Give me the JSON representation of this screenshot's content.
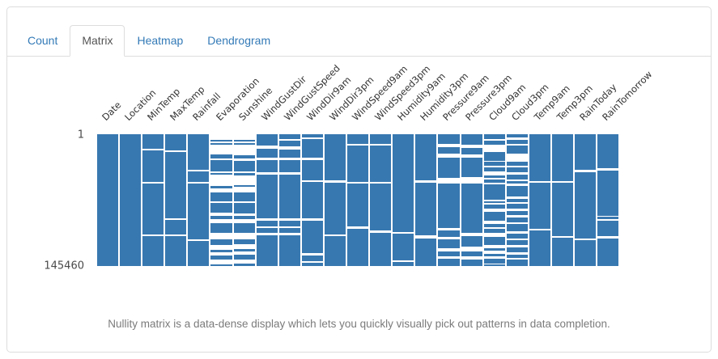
{
  "tabs": {
    "link_color": "#337ab7",
    "active_tab": "Matrix",
    "items": [
      {
        "label": "Count",
        "active": false
      },
      {
        "label": "Matrix",
        "active": true
      },
      {
        "label": "Heatmap",
        "active": false
      },
      {
        "label": "Dendrogram",
        "active": false
      }
    ]
  },
  "caption": "Nullity matrix is a data-dense display which lets you quickly visually pick out patterns in data completion.",
  "chart_data": {
    "type": "heatmap",
    "subtype": "nullity-matrix",
    "title": "",
    "xlabel": "",
    "ylabel": "",
    "row_axis": {
      "first_row_label": "1",
      "last_row_label": "145460",
      "total_rows": 145460
    },
    "colors": {
      "filled": "#3878b0",
      "missing": "#ffffff",
      "column_label": "#333333",
      "row_label": "#4a4a4a"
    },
    "legend": "none",
    "grid": false,
    "note": "gaps = missing-data bands per column as [top_fraction, height_fraction] of the 1..145460 row range",
    "columns": [
      {
        "name": "Date",
        "gaps": []
      },
      {
        "name": "Location",
        "gaps": []
      },
      {
        "name": "MinTemp",
        "gaps": [
          [
            0.108,
            0.012
          ],
          [
            0.36,
            0.012
          ],
          [
            0.76,
            0.012
          ]
        ]
      },
      {
        "name": "MaxTemp",
        "gaps": [
          [
            0.12,
            0.012
          ],
          [
            0.637,
            0.016
          ],
          [
            0.76,
            0.012
          ]
        ]
      },
      {
        "name": "Rainfall",
        "gaps": [
          [
            0.268,
            0.016
          ],
          [
            0.36,
            0.012
          ],
          [
            0.795,
            0.014
          ]
        ]
      },
      {
        "name": "Evaporation",
        "gaps": [
          [
            0.0,
            0.043
          ],
          [
            0.055,
            0.012
          ],
          [
            0.08,
            0.075
          ],
          [
            0.182,
            0.014
          ],
          [
            0.284,
            0.008
          ],
          [
            0.305,
            0.085
          ],
          [
            0.411,
            0.033
          ],
          [
            0.507,
            0.013
          ],
          [
            0.595,
            0.025
          ],
          [
            0.646,
            0.031
          ],
          [
            0.748,
            0.047
          ],
          [
            0.84,
            0.04
          ],
          [
            0.896,
            0.026
          ],
          [
            0.953,
            0.035
          ]
        ]
      },
      {
        "name": "Sunshine",
        "gaps": [
          [
            0.0,
            0.04
          ],
          [
            0.052,
            0.014
          ],
          [
            0.078,
            0.08
          ],
          [
            0.185,
            0.02
          ],
          [
            0.282,
            0.012
          ],
          [
            0.31,
            0.078
          ],
          [
            0.4,
            0.042
          ],
          [
            0.51,
            0.015
          ],
          [
            0.598,
            0.022
          ],
          [
            0.645,
            0.028
          ],
          [
            0.75,
            0.05
          ],
          [
            0.836,
            0.034
          ],
          [
            0.89,
            0.026
          ],
          [
            0.948,
            0.032
          ]
        ]
      },
      {
        "name": "WindGustDir",
        "gaps": [
          [
            0.084,
            0.024
          ],
          [
            0.176,
            0.02
          ],
          [
            0.288,
            0.021
          ],
          [
            0.64,
            0.016
          ],
          [
            0.7,
            0.014
          ],
          [
            0.748,
            0.022
          ]
        ]
      },
      {
        "name": "WindGustSpeed",
        "gaps": [
          [
            0.037,
            0.01
          ],
          [
            0.09,
            0.024
          ],
          [
            0.178,
            0.02
          ],
          [
            0.288,
            0.018
          ],
          [
            0.64,
            0.016
          ],
          [
            0.7,
            0.014
          ],
          [
            0.748,
            0.022
          ]
        ]
      },
      {
        "name": "WindDir9am",
        "gaps": [
          [
            0.022,
            0.017
          ],
          [
            0.176,
            0.02
          ],
          [
            0.35,
            0.012
          ],
          [
            0.636,
            0.02
          ],
          [
            0.9,
            0.018
          ],
          [
            0.965,
            0.012
          ]
        ]
      },
      {
        "name": "WindDir3pm",
        "gaps": [
          [
            0.35,
            0.016
          ],
          [
            0.759,
            0.016
          ]
        ]
      },
      {
        "name": "WindSpeed9am",
        "gaps": [
          [
            0.074,
            0.014
          ],
          [
            0.36,
            0.012
          ],
          [
            0.7,
            0.016
          ]
        ]
      },
      {
        "name": "WindSpeed3pm",
        "gaps": [
          [
            0.074,
            0.014
          ],
          [
            0.36,
            0.014
          ],
          [
            0.73,
            0.018
          ]
        ]
      },
      {
        "name": "Humidity9am",
        "gaps": [
          [
            0.74,
            0.016
          ],
          [
            0.958,
            0.012
          ]
        ]
      },
      {
        "name": "Humidity3pm",
        "gaps": [
          [
            0.35,
            0.02
          ],
          [
            0.769,
            0.021
          ]
        ]
      },
      {
        "name": "Pressure9am",
        "gaps": [
          [
            0.076,
            0.022
          ],
          [
            0.147,
            0.029
          ],
          [
            0.331,
            0.041
          ],
          [
            0.71,
            0.018
          ],
          [
            0.781,
            0.019
          ],
          [
            0.863,
            0.025
          ],
          [
            0.924,
            0.023
          ]
        ]
      },
      {
        "name": "Pressure3pm",
        "gaps": [
          [
            0.082,
            0.02
          ],
          [
            0.151,
            0.029
          ],
          [
            0.327,
            0.047
          ],
          [
            0.751,
            0.024
          ],
          [
            0.853,
            0.035
          ],
          [
            0.928,
            0.021
          ]
        ]
      },
      {
        "name": "Cloud9am",
        "gaps": [
          [
            0.039,
            0.008
          ],
          [
            0.08,
            0.053
          ],
          [
            0.202,
            0.007
          ],
          [
            0.241,
            0.006
          ],
          [
            0.282,
            0.031
          ],
          [
            0.333,
            0.013
          ],
          [
            0.37,
            0.012
          ],
          [
            0.495,
            0.012
          ],
          [
            0.524,
            0.012
          ],
          [
            0.566,
            0.025
          ],
          [
            0.659,
            0.024
          ],
          [
            0.703,
            0.015
          ],
          [
            0.75,
            0.029
          ],
          [
            0.843,
            0.022
          ],
          [
            0.883,
            0.023
          ],
          [
            0.928,
            0.015
          ],
          [
            0.98,
            0.01
          ]
        ]
      },
      {
        "name": "Cloud3pm",
        "gaps": [
          [
            0.025,
            0.016
          ],
          [
            0.076,
            0.01
          ],
          [
            0.147,
            0.062
          ],
          [
            0.239,
            0.011
          ],
          [
            0.29,
            0.015
          ],
          [
            0.342,
            0.014
          ],
          [
            0.372,
            0.021
          ],
          [
            0.47,
            0.02
          ],
          [
            0.515,
            0.015
          ],
          [
            0.567,
            0.016
          ],
          [
            0.613,
            0.017
          ],
          [
            0.669,
            0.014
          ],
          [
            0.736,
            0.021
          ],
          [
            0.792,
            0.014
          ],
          [
            0.843,
            0.014
          ],
          [
            0.894,
            0.02
          ],
          [
            0.94,
            0.01
          ]
        ]
      },
      {
        "name": "Temp9am",
        "gaps": [
          [
            0.355,
            0.016
          ],
          [
            0.715,
            0.016
          ]
        ]
      },
      {
        "name": "Temp3pm",
        "gaps": [
          [
            0.355,
            0.016
          ],
          [
            0.77,
            0.016
          ]
        ]
      },
      {
        "name": "RainToday",
        "gaps": [
          [
            0.27,
            0.016
          ],
          [
            0.79,
            0.016
          ]
        ]
      },
      {
        "name": "RainTomorrow",
        "gaps": [
          [
            0.26,
            0.016
          ],
          [
            0.617,
            0.01
          ],
          [
            0.645,
            0.01
          ],
          [
            0.775,
            0.016
          ]
        ]
      }
    ]
  }
}
